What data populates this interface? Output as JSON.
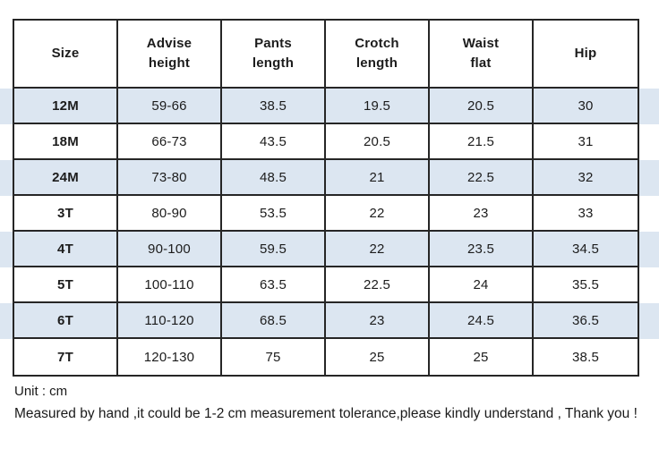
{
  "chart_data": {
    "type": "table",
    "unit": "cm",
    "columns": [
      "Size",
      "Advise height",
      "Pants length",
      "Crotch length",
      "Waist flat",
      "Hip"
    ],
    "rows": [
      [
        "12M",
        "59-66",
        "38.5",
        "19.5",
        "20.5",
        "30"
      ],
      [
        "18M",
        "66-73",
        "43.5",
        "20.5",
        "21.5",
        "31"
      ],
      [
        "24M",
        "73-80",
        "48.5",
        "21",
        "22.5",
        "32"
      ],
      [
        "3T",
        "80-90",
        "53.5",
        "22",
        "23",
        "33"
      ],
      [
        "4T",
        "90-100",
        "59.5",
        "22",
        "23.5",
        "34.5"
      ],
      [
        "5T",
        "100-110",
        "63.5",
        "22.5",
        "24",
        "35.5"
      ],
      [
        "6T",
        "110-120",
        "68.5",
        "23",
        "24.5",
        "36.5"
      ],
      [
        "7T",
        "120-130",
        "75",
        "25",
        "25",
        "38.5"
      ]
    ],
    "striped_row_indices": [
      0,
      2,
      4,
      6
    ]
  },
  "notes": {
    "unit": "Unit : cm",
    "tolerance": "Measured by hand ,it could be 1-2 cm measurement tolerance,please kindly understand , Thank you !"
  },
  "colors": {
    "stripe": "#dce6f1",
    "border": "#262626",
    "text": "#1c1c1c",
    "background": "#ffffff"
  }
}
